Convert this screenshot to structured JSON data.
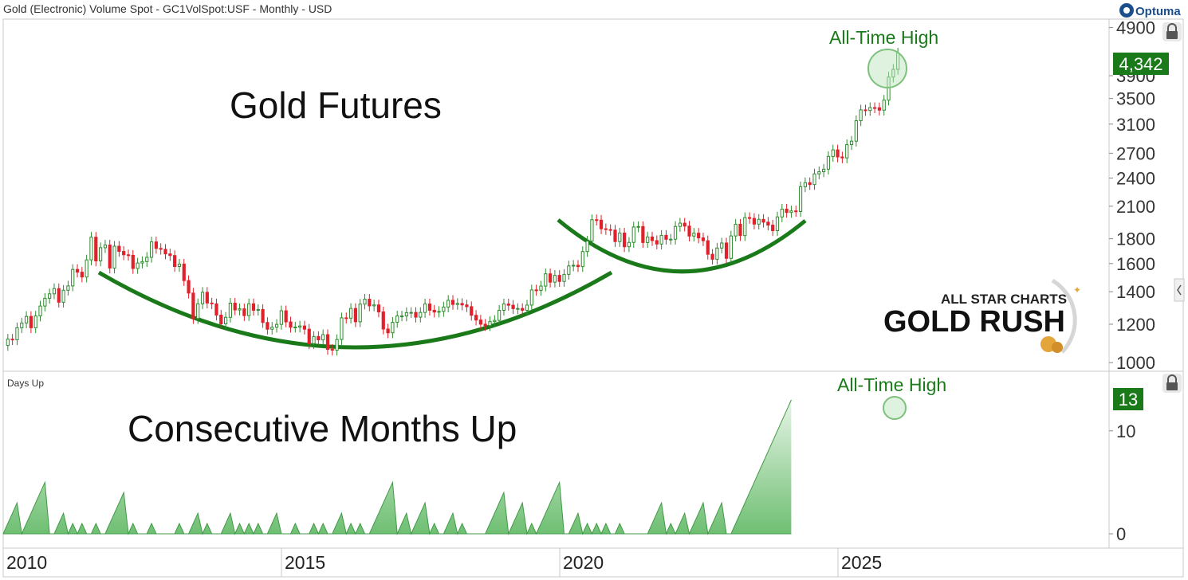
{
  "header": {
    "title": "Gold (Electronic) Volume Spot - GC1VolSpot:USF - Monthly - USD",
    "logo_text": "Optuma"
  },
  "colors": {
    "up": "#2e8b2e",
    "down": "#e0202a",
    "annotation": "#1a7a1a",
    "label_bg": "#1a7a1a",
    "area_fill": "#6fbf73",
    "grid_border": "#c8c8c8"
  },
  "price_panel": {
    "annotation_title": "Gold Futures",
    "ath_label": "All-Time High",
    "current_value": "4,342",
    "y_ticks": [
      "1000",
      "1200",
      "1400",
      "1600",
      "1800",
      "2100",
      "2400",
      "2700",
      "3100",
      "3500",
      "3900",
      "4900"
    ],
    "scale": "log"
  },
  "indicator_panel": {
    "name": "Days Up",
    "annotation_title": "Consecutive Months Up",
    "ath_label": "All-Time High",
    "current_value": "13",
    "y_ticks": [
      "0",
      "10"
    ]
  },
  "x_axis": {
    "ticks": [
      "2010",
      "2015",
      "2020",
      "2025"
    ]
  },
  "watermark": {
    "line1": "ALL STAR CHARTS",
    "line2": "GOLD RUSH"
  },
  "chart_data": [
    {
      "type": "candlestick",
      "title": "Gold (Electronic) Volume Spot - GC1VolSpot:USF - Monthly - USD",
      "scale": "log",
      "ylim": [
        960,
        5100
      ],
      "xlim": [
        2009.9,
        2027.0
      ],
      "start": 2010.0,
      "step": 0.0833,
      "closes": [
        1085,
        1118,
        1115,
        1180,
        1207,
        1245,
        1180,
        1248,
        1308,
        1357,
        1386,
        1421,
        1332,
        1410,
        1439,
        1556,
        1536,
        1501,
        1628,
        1813,
        1620,
        1725,
        1747,
        1566,
        1737,
        1695,
        1668,
        1664,
        1563,
        1604,
        1615,
        1648,
        1773,
        1719,
        1712,
        1675,
        1662,
        1578,
        1596,
        1476,
        1391,
        1233,
        1322,
        1396,
        1327,
        1322,
        1253,
        1202,
        1240,
        1326,
        1284,
        1291,
        1250,
        1322,
        1282,
        1287,
        1210,
        1172,
        1183,
        1199,
        1279,
        1213,
        1183,
        1184,
        1190,
        1172,
        1094,
        1132,
        1114,
        1142,
        1065,
        1061,
        1116,
        1237,
        1235,
        1293,
        1214,
        1320,
        1351,
        1309,
        1315,
        1272,
        1173,
        1152,
        1211,
        1248,
        1248,
        1268,
        1269,
        1241,
        1269,
        1321,
        1282,
        1271,
        1275,
        1302,
        1344,
        1318,
        1324,
        1315,
        1304,
        1252,
        1224,
        1200,
        1192,
        1215,
        1222,
        1282,
        1321,
        1313,
        1292,
        1293,
        1282,
        1314,
        1412,
        1409,
        1438,
        1524,
        1465,
        1513,
        1470,
        1520,
        1582,
        1587,
        1577,
        1694,
        1780,
        1970,
        1966,
        1887,
        1880,
        1875,
        1776,
        1849,
        1733,
        1769,
        1903,
        1907,
        1768,
        1815,
        1784,
        1755,
        1829,
        1795,
        1796,
        1908,
        1938,
        1911,
        1823,
        1848,
        1807,
        1783,
        1672,
        1633,
        1722,
        1764,
        1640,
        1824,
        1928,
        1827,
        1990,
        1982,
        1929,
        1973,
        1947,
        1920,
        1870,
        1996,
        2071,
        2039,
        2054,
        2048,
        2303,
        2348,
        2327,
        2448,
        2473,
        2503,
        2659,
        2743,
        2653,
        2641,
        2812,
        2859,
        3150,
        3316,
        3307,
        3352,
        3349,
        3312,
        3473,
        3874,
        4020,
        4342
      ],
      "description": "Monthly candles, Jan 2010 to Oct 2025; green = up month, red = down month"
    },
    {
      "type": "area",
      "title": "Days Up",
      "ylim": [
        0,
        14
      ],
      "series": [
        {
          "name": "Days Up",
          "start": 2010.0,
          "step": 0.0833,
          "values": [
            0,
            1,
            2,
            3,
            0,
            1,
            2,
            3,
            4,
            5,
            0,
            0,
            1,
            2,
            0,
            1,
            0,
            1,
            0,
            0,
            1,
            0,
            0,
            1,
            2,
            3,
            4,
            0,
            1,
            0,
            0,
            0,
            1,
            0,
            0,
            0,
            0,
            0,
            1,
            0,
            0,
            1,
            2,
            0,
            1,
            0,
            0,
            0,
            1,
            2,
            0,
            1,
            0,
            1,
            0,
            1,
            0,
            0,
            1,
            2,
            0,
            0,
            0,
            1,
            0,
            0,
            0,
            1,
            0,
            1,
            0,
            0,
            1,
            2,
            0,
            1,
            0,
            1,
            0,
            0,
            1,
            2,
            3,
            4,
            5,
            0,
            1,
            2,
            0,
            1,
            2,
            3,
            0,
            1,
            0,
            0,
            1,
            2,
            0,
            1,
            0,
            0,
            0,
            0,
            0,
            1,
            2,
            3,
            4,
            0,
            1,
            2,
            3,
            0,
            1,
            0,
            1,
            2,
            3,
            4,
            5,
            0,
            0,
            1,
            2,
            0,
            1,
            0,
            1,
            0,
            1,
            0,
            0,
            1,
            0,
            0,
            0,
            0,
            0,
            0,
            1,
            2,
            3,
            0,
            1,
            0,
            1,
            2,
            0,
            1,
            2,
            3,
            0,
            1,
            2,
            3,
            0,
            0,
            1,
            2,
            3,
            4,
            5,
            6,
            7,
            8,
            9,
            10,
            11,
            12,
            13
          ]
        }
      ],
      "x_ticks": [
        "2010",
        "2015",
        "2020",
        "2025"
      ],
      "y_ticks": [
        "0",
        "10"
      ]
    }
  ]
}
